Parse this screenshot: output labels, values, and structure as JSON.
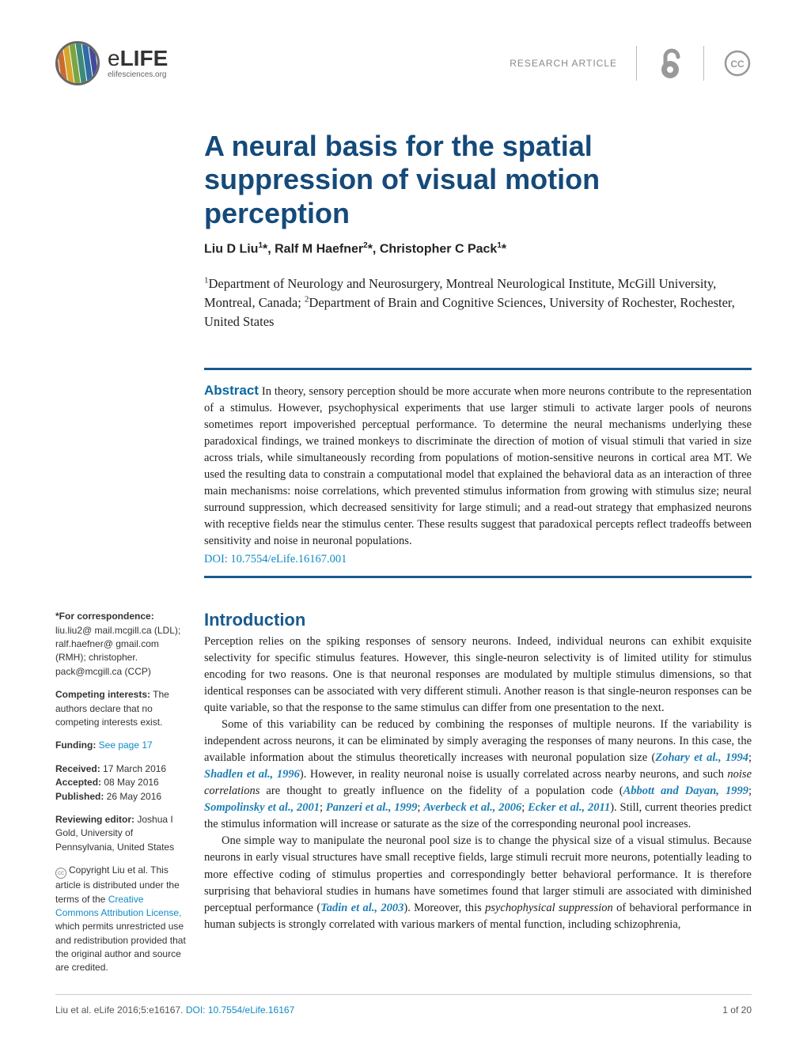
{
  "header": {
    "journal": "eLIFE",
    "journal_url": "elifesciences.org",
    "article_type": "RESEARCH ARTICLE",
    "logo_stripe_colors": [
      "#c13a3a",
      "#c96b2d",
      "#d6a52c",
      "#7aa641",
      "#3e8a7a",
      "#2e6ca4",
      "#444a9a",
      "#7a3e8b"
    ],
    "logo_border": "#666666",
    "oa_color": "#999999",
    "cc_color": "#999999",
    "divider_color": "#bbbbbb"
  },
  "title": "A neural basis for the spatial suppression of visual motion perception",
  "title_color": "#154a7a",
  "authors_html": "Liu D Liu<sup>1</sup>*, Ralf M Haefner<sup>2</sup>*, Christopher C Pack<sup>1</sup>*",
  "affiliations_html": "<sup>1</sup>Department of Neurology and Neurosurgery, Montreal Neurological Institute, McGill University, Montreal, Canada; <sup>2</sup>Department of Brain and Cognitive Sciences, University of Rochester, Rochester, United States",
  "abstract": {
    "label": "Abstract",
    "text": "In theory, sensory perception should be more accurate when more neurons contribute to the representation of a stimulus. However, psychophysical experiments that use larger stimuli to activate larger pools of neurons sometimes report impoverished perceptual performance. To determine the neural mechanisms underlying these paradoxical findings, we trained monkeys to discriminate the direction of motion of visual stimuli that varied in size across trials, while simultaneously recording from populations of motion-sensitive neurons in cortical area MT. We used the resulting data to constrain a computational model that explained the behavioral data as an interaction of three main mechanisms: noise correlations, which prevented stimulus information from growing with stimulus size; neural surround suppression, which decreased sensitivity for large stimuli; and a read-out strategy that emphasized neurons with receptive fields near the stimulus center. These results suggest that paradoxical percepts reflect tradeoffs between sensitivity and noise in neuronal populations.",
    "doi": "DOI: 10.7554/eLife.16167.001",
    "rule_color": "#1a5a8c",
    "label_color": "#07689f"
  },
  "sidebar": {
    "correspondence_label": "*For correspondence:",
    "correspondence_text": " liu.liu2@ mail.mcgill.ca (LDL); ralf.haefner@ gmail.com (RMH); christopher. pack@mcgill.ca (CCP)",
    "competing_label": "Competing interests:",
    "competing_text": " The authors declare that no competing interests exist.",
    "funding_label": "Funding:",
    "funding_link": " See page 17",
    "received_label": "Received:",
    "received": " 17 March 2016",
    "accepted_label": "Accepted:",
    "accepted": " 08 May 2016",
    "published_label": "Published:",
    "published": " 26 May 2016",
    "reviewing_label": "Reviewing editor:",
    "reviewing": " Joshua I Gold, University of Pennsylvania, United States",
    "copyright_prefix": "Copyright Liu et al. This article is distributed under the terms of the ",
    "license_link": "Creative Commons Attribution License,",
    "copyright_suffix": " which permits unrestricted use and redistribution provided that the original author and source are credited."
  },
  "intro": {
    "heading": "Introduction",
    "heading_color": "#1a5a8c",
    "p1": "Perception relies on the spiking responses of sensory neurons. Indeed, individual neurons can exhibit exquisite selectivity for specific stimulus features. However, this single-neuron selectivity is of limited utility for stimulus encoding for two reasons. One is that neuronal responses are modulated by multiple stimulus dimensions, so that identical responses can be associated with very different stimuli. Another reason is that single-neuron responses can be quite variable, so that the response to the same stimulus can differ from one presentation to the next.",
    "p2_a": "Some of this variability can be reduced by combining the responses of multiple neurons. If the variability is independent across neurons, it can be eliminated by simply averaging the responses of many neurons. In this case, the available information about the stimulus theoretically increases with neuronal population size (",
    "p2_ref1": "Zohary et al., 1994",
    "p2_b": "; ",
    "p2_ref2": "Shadlen et al., 1996",
    "p2_c": "). However, in reality neuronal noise is usually correlated across nearby neurons, and such ",
    "p2_em": "noise correlations",
    "p2_d": " are thought to greatly influence on the fidelity of a population code (",
    "p2_ref3": "Abbott and Dayan, 1999",
    "p2_e": "; ",
    "p2_ref4": "Sompolinsky et al., 2001",
    "p2_f": "; ",
    "p2_ref5": "Panzeri et al., 1999",
    "p2_g": "; ",
    "p2_ref6": "Averbeck et al., 2006",
    "p2_h": "; ",
    "p2_ref7": "Ecker et al., 2011",
    "p2_i": "). Still, current theories predict the stimulus information will increase or saturate as the size of the corresponding neuronal pool increases.",
    "p3_a": "One simple way to manipulate the neuronal pool size is to change the physical size of a visual stimulus. Because neurons in early visual structures have small receptive fields, large stimuli recruit more neurons, potentially leading to more effective coding of stimulus properties and correspondingly better behavioral performance. It is therefore surprising that behavioral studies in humans have sometimes found that larger stimuli are associated with diminished perceptual performance (",
    "p3_ref1": "Tadin et al., 2003",
    "p3_b": "). Moreover, this ",
    "p3_em": "psychophysical suppression",
    "p3_c": " of behavioral performance in human subjects is strongly correlated with various markers of mental function, including schizophrenia,"
  },
  "footer": {
    "left_a": "Liu et al. eLife 2016;5:e16167. ",
    "doi": "DOI: 10.7554/eLife.16167",
    "right": "1 of 20"
  },
  "link_color": "#0f8bc4",
  "ref_color": "#1f7fb5"
}
